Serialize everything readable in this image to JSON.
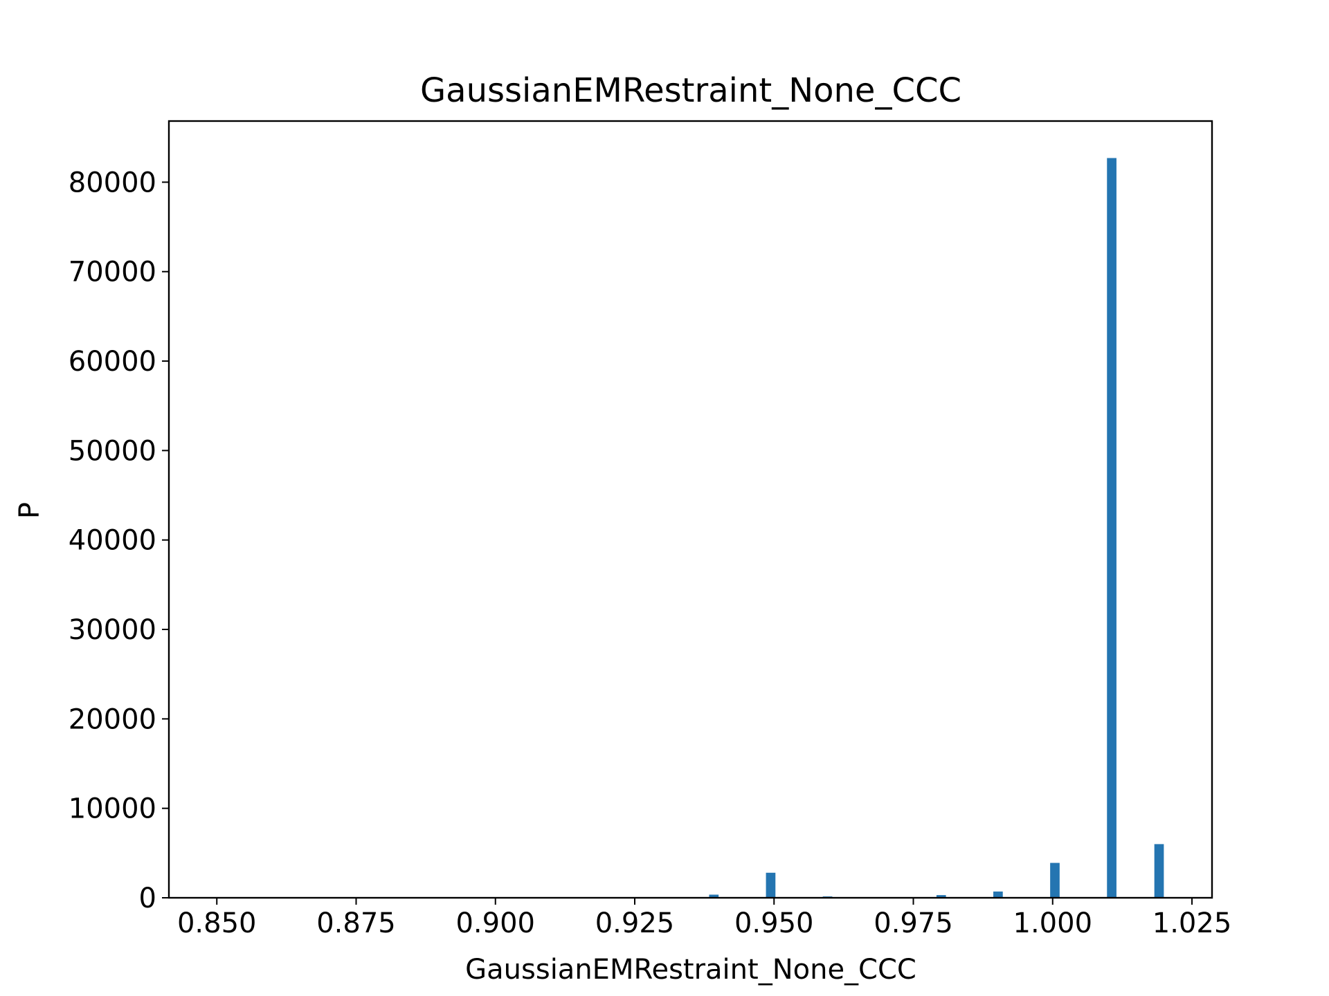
{
  "chart_data": {
    "type": "bar",
    "title": "GaussianEMRestraint_None_CCC",
    "xlabel": "GaussianEMRestraint_None_CCC",
    "ylabel": "P",
    "xlim": [
      0.8414,
      1.0286
    ],
    "ylim": [
      0,
      86835
    ],
    "xticks": [
      0.85,
      0.875,
      0.9,
      0.925,
      0.95,
      0.975,
      1.0,
      1.025
    ],
    "xtick_labels": [
      "0.850",
      "0.875",
      "0.900",
      "0.925",
      "0.950",
      "0.975",
      "1.000",
      "1.025"
    ],
    "yticks": [
      0,
      10000,
      20000,
      30000,
      40000,
      50000,
      60000,
      70000,
      80000
    ],
    "ytick_labels": [
      "0",
      "10000",
      "20000",
      "30000",
      "40000",
      "50000",
      "60000",
      "70000",
      "80000"
    ],
    "bar_width": 0.0017,
    "bars": [
      {
        "x": 0.9392,
        "value": 350
      },
      {
        "x": 0.9494,
        "value": 2800
      },
      {
        "x": 0.9596,
        "value": 150
      },
      {
        "x": 0.98,
        "value": 300
      },
      {
        "x": 0.9902,
        "value": 700
      },
      {
        "x": 1.0004,
        "value": 3900
      },
      {
        "x": 1.0106,
        "value": 82700
      },
      {
        "x": 1.0191,
        "value": 6000
      }
    ],
    "color": "#2475b1",
    "grid": false,
    "legend": "none"
  }
}
